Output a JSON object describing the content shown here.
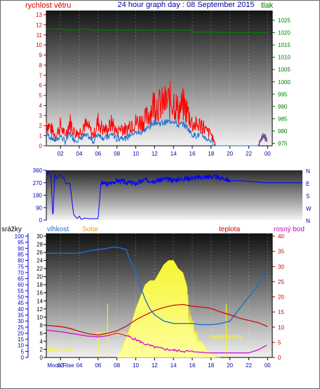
{
  "header": {
    "left_label": "rychlost větru",
    "title": "24 hour graph day : 08 September 2015",
    "right_label": "tlak"
  },
  "colors": {
    "wind": "#ff0000",
    "gust_avg": "#1e6fd0",
    "pressure": "#008000",
    "direction": "#0000ff",
    "humidity": "#1e6fd0",
    "solar": "#ffff00",
    "temperature": "#cc0000",
    "dewpoint": "#cc00cc",
    "rain_axis": "#0000cc",
    "solar_label": "#ff9900",
    "moon": "#ffff00"
  },
  "chart_data": [
    {
      "type": "line",
      "name_left": "rychlost větru",
      "name_right": "tlak",
      "x_tick_labels": [
        "02",
        "04",
        "06",
        "08",
        "10",
        "12",
        "14",
        "16",
        "18",
        "20",
        "22",
        "00"
      ],
      "x_hours": [
        2,
        4,
        6,
        8,
        10,
        12,
        14,
        16,
        18,
        20,
        22,
        24
      ],
      "xlim": [
        0.5,
        24.5
      ],
      "y_left_ticks": [
        0,
        1,
        2,
        3,
        4,
        5,
        6,
        7,
        8,
        9,
        10,
        11,
        12,
        13
      ],
      "ylim_left": [
        0,
        13
      ],
      "y_right_ticks": [
        975,
        980,
        985,
        990,
        995,
        1000,
        1005,
        1010,
        1015,
        1020,
        1025
      ],
      "ylim_right": [
        974,
        1029
      ],
      "series": [
        {
          "key": "wind",
          "x": [
            0.5,
            1,
            1.5,
            2,
            2.5,
            3,
            3.5,
            4,
            4.5,
            5,
            5.5,
            6,
            6.5,
            7,
            7.5,
            8,
            8.5,
            9,
            9.5,
            10,
            10.5,
            11,
            11.5,
            12,
            12.5,
            13,
            13.5,
            14,
            14.5,
            15,
            15.5,
            16,
            16.5,
            17,
            17.5,
            18,
            18.5,
            19,
            19.5,
            20,
            20.5,
            21,
            21.5,
            22,
            22.5,
            23,
            23.5,
            24
          ],
          "y": [
            2.3,
            1.7,
            1.0,
            2.0,
            1.0,
            2.4,
            1.3,
            1.3,
            2.1,
            1.8,
            1.0,
            2.4,
            1.6,
            1.6,
            2.3,
            1.3,
            1.9,
            1.5,
            2.4,
            2.3,
            2.4,
            2.6,
            3.3,
            4.4,
            4.0,
            4.2,
            4.4,
            4.5,
            3.5,
            4.0,
            3.4,
            2.2,
            2.0,
            2.2,
            1.4,
            1.2,
            0.0,
            0.0,
            0.0,
            0.0,
            0.0,
            0.0,
            0.0,
            0.0,
            0.0,
            0.0,
            1.2,
            0.5
          ]
        },
        {
          "key": "wind_avg",
          "x": [
            0.5,
            1,
            1.5,
            2,
            2.5,
            3,
            3.5,
            4,
            4.5,
            5,
            5.5,
            6,
            6.5,
            7,
            7.5,
            8,
            8.5,
            9,
            9.5,
            10,
            10.5,
            11,
            11.5,
            12,
            12.5,
            13,
            13.5,
            14,
            14.5,
            15,
            15.5,
            16,
            16.5,
            17,
            17.5,
            18,
            18.5,
            19,
            19.5,
            20,
            20.5,
            21,
            21.5,
            22,
            22.5,
            23,
            23.5,
            24
          ],
          "y": [
            1.2,
            0.8,
            0.5,
            1.0,
            0.4,
            1.2,
            0.6,
            0.6,
            1.0,
            0.9,
            0.4,
            1.2,
            0.8,
            0.8,
            1.2,
            0.6,
            0.9,
            0.7,
            1.2,
            1.3,
            1.3,
            1.6,
            1.9,
            2.4,
            2.2,
            2.3,
            2.4,
            2.5,
            2.0,
            2.2,
            1.8,
            1.1,
            1.0,
            1.1,
            0.7,
            0.5,
            0.0,
            0.0,
            0.0,
            0.0,
            0.0,
            0.0,
            0.0,
            0.0,
            0.0,
            0.0,
            1.0,
            0.4
          ]
        },
        {
          "key": "pressure",
          "x": [
            0.5,
            2,
            3,
            4,
            4.5,
            5,
            5.5,
            6,
            8,
            10,
            12,
            14,
            15,
            16,
            16.2,
            18,
            20,
            22,
            24
          ],
          "y": [
            1021.5,
            1021.5,
            1021.0,
            1021.0,
            1021.5,
            1021.5,
            1021.0,
            1021.0,
            1021.0,
            1021.0,
            1021.0,
            1021.0,
            1021.0,
            1021.0,
            1020.2,
            1020.2,
            1020.0,
            1020.0,
            1020.0
          ]
        }
      ]
    },
    {
      "type": "line",
      "name": "direction",
      "x_tick_labels": [],
      "xlim": [
        0.5,
        24.5
      ],
      "y_left_ticks": [
        0,
        90,
        180,
        270,
        360
      ],
      "ylim": [
        0,
        360
      ],
      "y_right_labels": [
        "N",
        "W",
        "S",
        "E",
        "N"
      ],
      "series": [
        {
          "key": "direction",
          "x": [
            0.5,
            0.7,
            1.0,
            1.2,
            1.4,
            1.6,
            2.0,
            2.4,
            2.6,
            3.0,
            3.4,
            3.8,
            4.0,
            4.2,
            4.6,
            5.0,
            5.2,
            6.0,
            6.3,
            7.0,
            8.0,
            9.0,
            10.0,
            11.0,
            12.0,
            13.0,
            14.0,
            15.0,
            16.0,
            17.0,
            18.0,
            19.0,
            19.5,
            20.0,
            21.0,
            22.0,
            23.0,
            24.0
          ],
          "y": [
            330,
            345,
            320,
            15,
            330,
            300,
            330,
            300,
            260,
            270,
            40,
            10,
            30,
            5,
            15,
            10,
            10,
            10,
            270,
            260,
            285,
            275,
            265,
            290,
            285,
            295,
            290,
            300,
            305,
            310,
            315,
            305,
            300,
            285,
            285,
            280,
            275,
            270
          ]
        }
      ]
    },
    {
      "type": "line",
      "name_left_1": "srážky",
      "name_left_2": "vlhkost",
      "name_left_3": "Solar",
      "name_right_1": "teplota",
      "name_right_2": "rosný bod",
      "x_tick_labels": [
        "02",
        "04",
        "06",
        "08",
        "10",
        "12",
        "14",
        "16",
        "18",
        "20",
        "22",
        "00"
      ],
      "xlim": [
        0.5,
        24.5
      ],
      "y_rain_ticks": [
        0,
        5,
        10,
        15,
        20,
        25,
        30,
        35,
        40,
        45,
        50,
        55,
        60,
        65,
        70,
        75,
        80,
        85,
        90,
        95,
        100
      ],
      "y_hum_ticks": [
        0,
        2,
        4,
        6,
        8,
        10,
        12,
        14,
        16,
        18,
        20,
        22,
        24,
        26,
        28,
        30
      ],
      "y_temp_ticks": [
        0,
        5,
        10,
        15,
        20,
        25,
        30,
        35,
        40
      ],
      "ylim_rain": [
        0,
        100
      ],
      "ylim_hum": [
        0,
        30
      ],
      "ylim_temp": [
        0,
        40
      ],
      "annotations": [
        "východ slunce",
        "západ slunce",
        "Moon Rise",
        "Moon Rise"
      ],
      "series": [
        {
          "key": "humidity",
          "x": [
            0.5,
            2,
            4,
            5,
            6,
            7,
            7.5,
            8,
            8.5,
            9,
            9.3,
            10,
            10.5,
            11,
            11.5,
            12,
            13,
            14,
            15,
            16,
            17,
            18,
            19,
            20,
            21,
            22,
            23,
            24
          ],
          "y": [
            86,
            86,
            86,
            88,
            89,
            90,
            91,
            91,
            90,
            89,
            82,
            70,
            58,
            48,
            40,
            35,
            30,
            28,
            28,
            28,
            27,
            27,
            28,
            30,
            40,
            50,
            60,
            70
          ]
        },
        {
          "key": "temperature",
          "x": [
            0.5,
            2,
            3,
            4,
            5,
            6,
            7,
            8,
            9,
            10,
            11,
            12,
            13,
            14,
            15,
            16,
            17,
            18,
            19,
            20,
            21,
            22,
            23,
            24
          ],
          "y": [
            10.6,
            10.2,
            9.6,
            8.6,
            7.8,
            7.4,
            8.0,
            8.8,
            10.3,
            12.4,
            14.0,
            15.5,
            16.5,
            17.2,
            17.5,
            16.9,
            16.6,
            16.2,
            15.0,
            14.1,
            13.0,
            12.2,
            11.5,
            10.2
          ]
        },
        {
          "key": "dewpoint",
          "x": [
            0.5,
            2,
            3,
            4,
            5,
            6,
            7,
            7.5,
            8,
            9,
            10,
            11,
            12,
            13,
            14,
            15,
            16,
            17,
            18,
            19,
            20,
            21,
            22,
            23,
            24
          ],
          "y": [
            9.0,
            8.5,
            8.0,
            7.5,
            7.0,
            6.8,
            7.2,
            7.6,
            8.0,
            7.2,
            5.9,
            4.4,
            3.4,
            2.8,
            2.4,
            2.1,
            1.9,
            1.7,
            1.5,
            1.5,
            1.5,
            1.5,
            1.5,
            2.5,
            4.2
          ]
        },
        {
          "key": "solar",
          "x": [
            8,
            8.5,
            9,
            9.5,
            10,
            10.5,
            11,
            11.5,
            12,
            12.5,
            13,
            13.5,
            14,
            14.5,
            15,
            15.5,
            16,
            16.5,
            17,
            17.5,
            18,
            18.5,
            19
          ],
          "y": [
            0,
            2,
            5,
            8,
            12,
            15,
            18,
            19,
            19,
            21,
            23,
            24,
            24,
            22,
            21,
            17,
            10,
            7,
            4,
            2,
            1,
            0,
            0
          ]
        }
      ]
    }
  ]
}
